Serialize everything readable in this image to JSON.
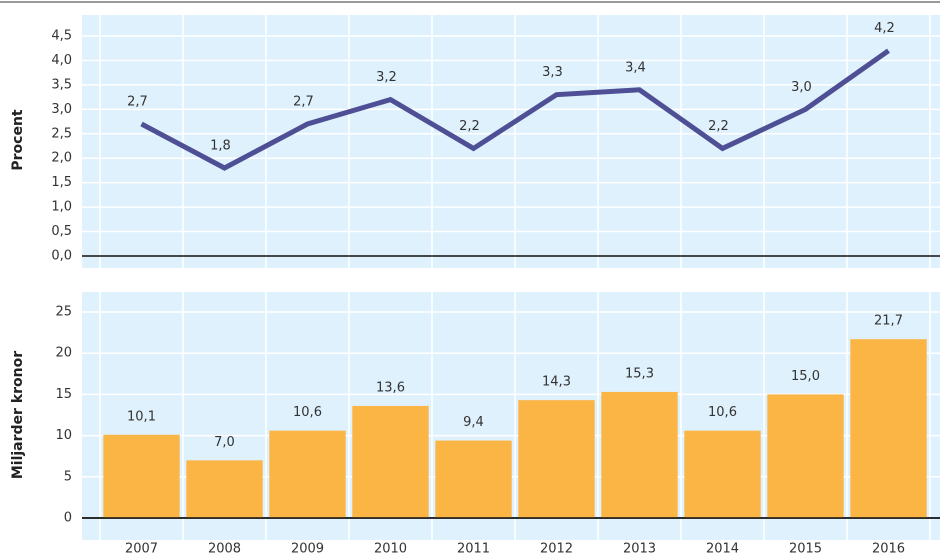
{
  "chart_data": [
    {
      "type": "line",
      "y_label": "Procent",
      "color": "#4e4f94",
      "values": [
        2.7,
        1.8,
        2.7,
        3.2,
        2.2,
        3.3,
        3.4,
        2.2,
        3.0,
        4.2
      ],
      "value_labels": [
        "2,7",
        "1,8",
        "2,7",
        "3,2",
        "2,2",
        "3,3",
        "3,4",
        "2,2",
        "3,0",
        "4,2"
      ],
      "ylim": [
        0,
        4.5
      ],
      "yticks": [
        {
          "value": 0,
          "label": "0,0"
        },
        {
          "value": 0.5,
          "label": "0,5"
        },
        {
          "value": 1,
          "label": "1,0"
        },
        {
          "value": 1.5,
          "label": "1,5"
        },
        {
          "value": 2,
          "label": "2,0"
        },
        {
          "value": 2.5,
          "label": "2,5"
        },
        {
          "value": 3,
          "label": "3,0"
        },
        {
          "value": 3.5,
          "label": "3,5"
        },
        {
          "value": 4,
          "label": "4,0"
        },
        {
          "value": 4.5,
          "label": "4,5"
        }
      ],
      "grid": true
    },
    {
      "type": "bar",
      "y_label": "Miljarder kronor",
      "color": "#fbb545",
      "categories": [
        "2007",
        "2008",
        "2009",
        "2010",
        "2011",
        "2012",
        "2013",
        "2014",
        "2015",
        "2016"
      ],
      "values": [
        10.1,
        7.0,
        10.6,
        13.6,
        9.4,
        14.3,
        15.3,
        10.6,
        15.0,
        21.7
      ],
      "value_labels": [
        "10,1",
        "7,0",
        "10,6",
        "13,6",
        "9,4",
        "14,3",
        "15,3",
        "10,6",
        "15,0",
        "21,7"
      ],
      "ylim": [
        0,
        25
      ],
      "yticks": [
        0,
        5,
        10,
        15,
        20,
        25
      ],
      "grid": true
    }
  ]
}
